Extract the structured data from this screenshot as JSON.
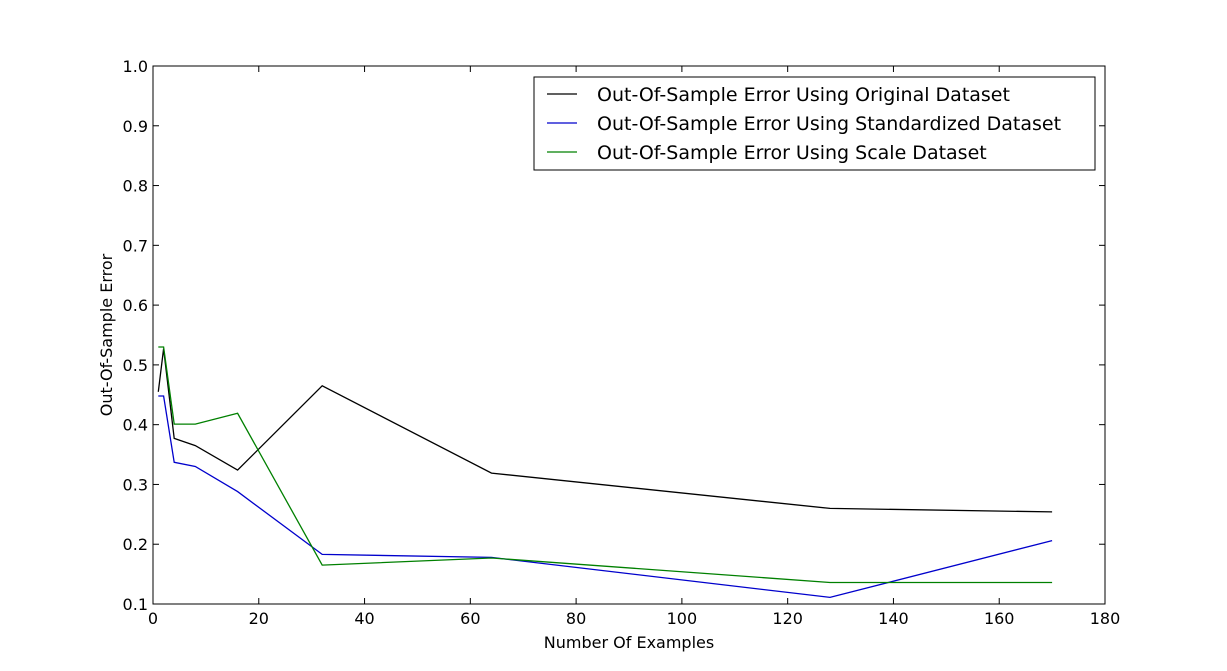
{
  "chart_data": {
    "type": "line",
    "title": "",
    "xlabel": "Number Of Examples",
    "ylabel": "Out-Of-Sample Error",
    "xlim": [
      0,
      180
    ],
    "ylim": [
      0.1,
      1.0
    ],
    "xticks": [
      "0",
      "20",
      "40",
      "60",
      "80",
      "100",
      "120",
      "140",
      "160",
      "180"
    ],
    "yticks": [
      "0.1",
      "0.2",
      "0.3",
      "0.4",
      "0.5",
      "0.6",
      "0.7",
      "0.8",
      "0.9",
      "1.0"
    ],
    "grid": false,
    "legend_position": "top-right",
    "series": [
      {
        "name": "Out-Of-Sample Error Using Original Dataset",
        "color": "#000000",
        "x": [
          1,
          2,
          4,
          8,
          16,
          32,
          64,
          128,
          170
        ],
        "y": [
          0.455,
          0.527,
          0.377,
          0.365,
          0.324,
          0.465,
          0.319,
          0.26,
          0.254
        ]
      },
      {
        "name": "Out-Of-Sample Error Using Standardized Dataset",
        "color": "#0000cc",
        "x": [
          1,
          2,
          4,
          8,
          16,
          32,
          64,
          128,
          170
        ],
        "y": [
          0.448,
          0.448,
          0.337,
          0.33,
          0.288,
          0.183,
          0.178,
          0.111,
          0.206
        ]
      },
      {
        "name": "Out-Of-Sample Error Using Scale Dataset",
        "color": "#008000",
        "x": [
          1,
          2,
          4,
          8,
          16,
          32,
          64,
          128,
          170
        ],
        "y": [
          0.53,
          0.53,
          0.401,
          0.401,
          0.419,
          0.165,
          0.177,
          0.136,
          0.136
        ]
      }
    ]
  }
}
